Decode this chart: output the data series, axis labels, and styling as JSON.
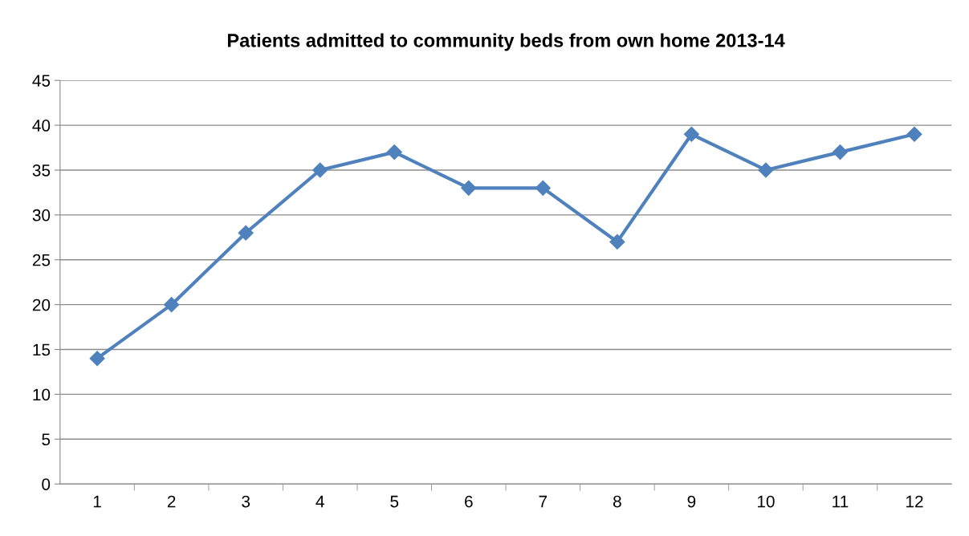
{
  "chart_data": {
    "type": "line",
    "title": "Patients admitted to community beds from own home 2013-14",
    "categories": [
      "1",
      "2",
      "3",
      "4",
      "5",
      "6",
      "7",
      "8",
      "9",
      "10",
      "11",
      "12"
    ],
    "series": [
      {
        "color": "#4f81bd",
        "values": [
          14,
          20,
          28,
          35,
          37,
          33,
          33,
          27,
          39,
          35,
          37,
          39
        ]
      }
    ],
    "ylim": [
      0,
      45
    ],
    "yticks": [
      0,
      5,
      10,
      15,
      20,
      25,
      30,
      35,
      40,
      45
    ],
    "grid": "y",
    "marker": "diamond",
    "line_style": "solid"
  }
}
